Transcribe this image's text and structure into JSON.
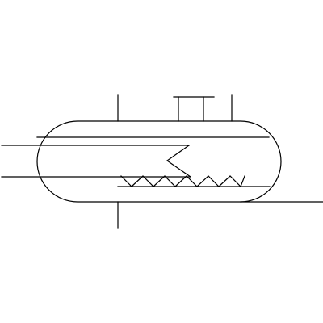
{
  "diagram": {
    "kind": "process-vessel-schematic",
    "stroke_color": "#000000",
    "background_color": "#ffffff"
  }
}
